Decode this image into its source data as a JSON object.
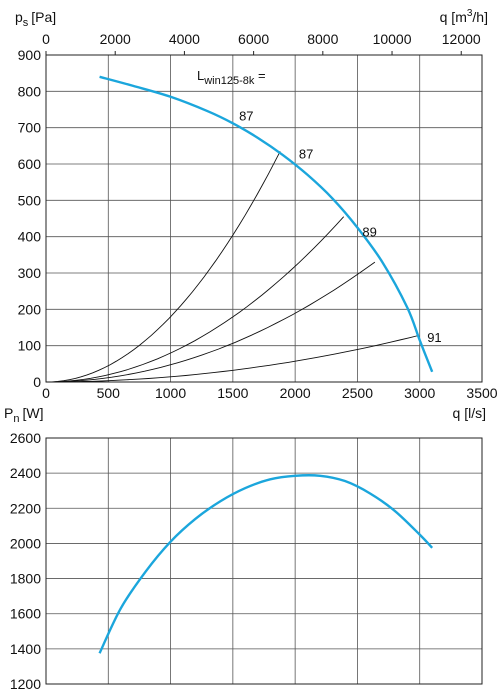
{
  "chart_data": [
    {
      "type": "line",
      "title": "",
      "ylabel": "p",
      "ylabel_sub": "s",
      "ylabel_unit": "[Pa]",
      "xlabel": "q [l/s]",
      "x2label": "q [m",
      "x2label_sup": "3",
      "x2label_end": "/h]",
      "xlim": [
        0,
        3500
      ],
      "ylim": [
        0,
        900
      ],
      "x_ticks": [
        0,
        500,
        1000,
        1500,
        2000,
        2500,
        3000,
        3500
      ],
      "y_ticks": [
        0,
        100,
        200,
        300,
        400,
        500,
        600,
        700,
        800,
        900
      ],
      "x2_ticks": [
        0,
        2000,
        4000,
        6000,
        8000,
        10000,
        12000
      ],
      "grid": true,
      "curve_color": "#1ba6dc",
      "annotation": {
        "text_main": "L",
        "text_sub": "win125-8k",
        "text_end": " ="
      },
      "series": [
        {
          "x": [
            430,
            700,
            1000,
            1300,
            1500,
            1700,
            1900,
            2100,
            2300,
            2500,
            2700,
            2900,
            3000,
            3100
          ],
          "y": [
            840,
            815,
            785,
            745,
            712,
            672,
            625,
            570,
            505,
            425,
            330,
            205,
            115,
            28
          ]
        }
      ],
      "system_curves": [
        {
          "end_x": 1880,
          "end_y": 635
        },
        {
          "end_x": 2390,
          "end_y": 455
        },
        {
          "end_x": 2640,
          "end_y": 330
        },
        {
          "end_x": 2990,
          "end_y": 128
        }
      ],
      "labels": [
        {
          "text": "87",
          "x": 1550,
          "y": 720
        },
        {
          "text": "87",
          "x": 2030,
          "y": 615
        },
        {
          "text": "89",
          "x": 2540,
          "y": 400
        },
        {
          "text": "91",
          "x": 3060,
          "y": 110
        }
      ]
    },
    {
      "type": "line",
      "title": "",
      "ylabel": "P",
      "ylabel_sub": "n",
      "ylabel_unit": "[W]",
      "xlim": [
        0,
        3500
      ],
      "ylim": [
        1200,
        2600
      ],
      "y_ticks": [
        1200,
        1400,
        1600,
        1800,
        2000,
        2200,
        2400,
        2600
      ],
      "grid": true,
      "curve_color": "#1ba6dc",
      "series": [
        {
          "x": [
            430,
            600,
            800,
            1000,
            1200,
            1400,
            1600,
            1800,
            2000,
            2200,
            2400,
            2600,
            2800,
            3000,
            3100
          ],
          "y": [
            1375,
            1630,
            1840,
            2010,
            2140,
            2240,
            2315,
            2365,
            2385,
            2385,
            2355,
            2285,
            2185,
            2050,
            1975
          ]
        }
      ]
    }
  ]
}
